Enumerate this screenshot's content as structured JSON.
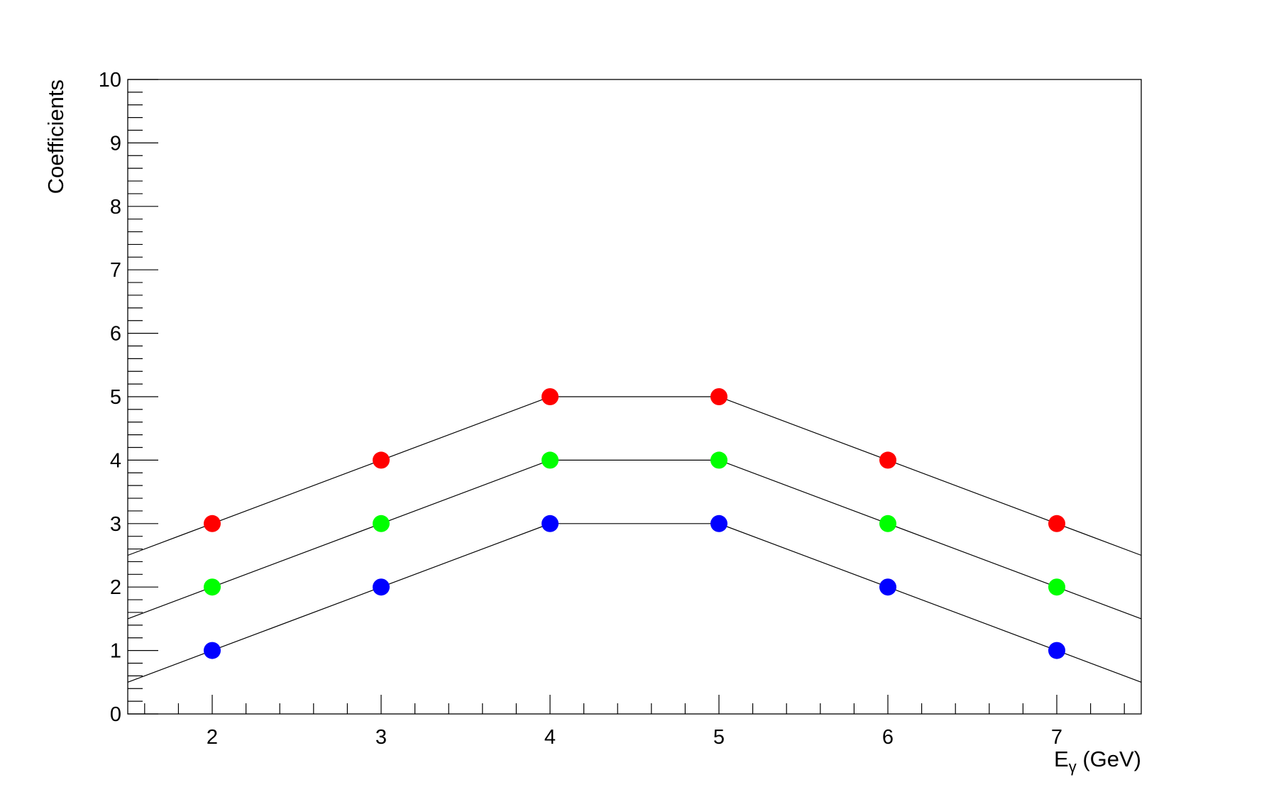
{
  "chart_data": {
    "type": "line",
    "title": "",
    "xlabel": "E",
    "xlabel_subscript": "γ",
    "xlabel_unit": " (GeV)",
    "ylabel": "Coefficients",
    "xlim": [
      1.5,
      7.5
    ],
    "ylim": [
      0,
      10
    ],
    "x_ticks": [
      2,
      3,
      4,
      5,
      6,
      7
    ],
    "y_ticks": [
      0,
      1,
      2,
      3,
      4,
      5,
      6,
      7,
      8,
      9,
      10
    ],
    "grid": false,
    "x": [
      2,
      3,
      4,
      5,
      6,
      7
    ],
    "line_color": "#000000",
    "series": [
      {
        "color": "#ff0000",
        "values": [
          3,
          4,
          5,
          5,
          4,
          3
        ]
      },
      {
        "color": "#00ff00",
        "values": [
          2,
          3,
          4,
          4,
          3,
          2
        ]
      },
      {
        "color": "#0000ff",
        "values": [
          1,
          2,
          3,
          3,
          2,
          1
        ]
      }
    ]
  }
}
